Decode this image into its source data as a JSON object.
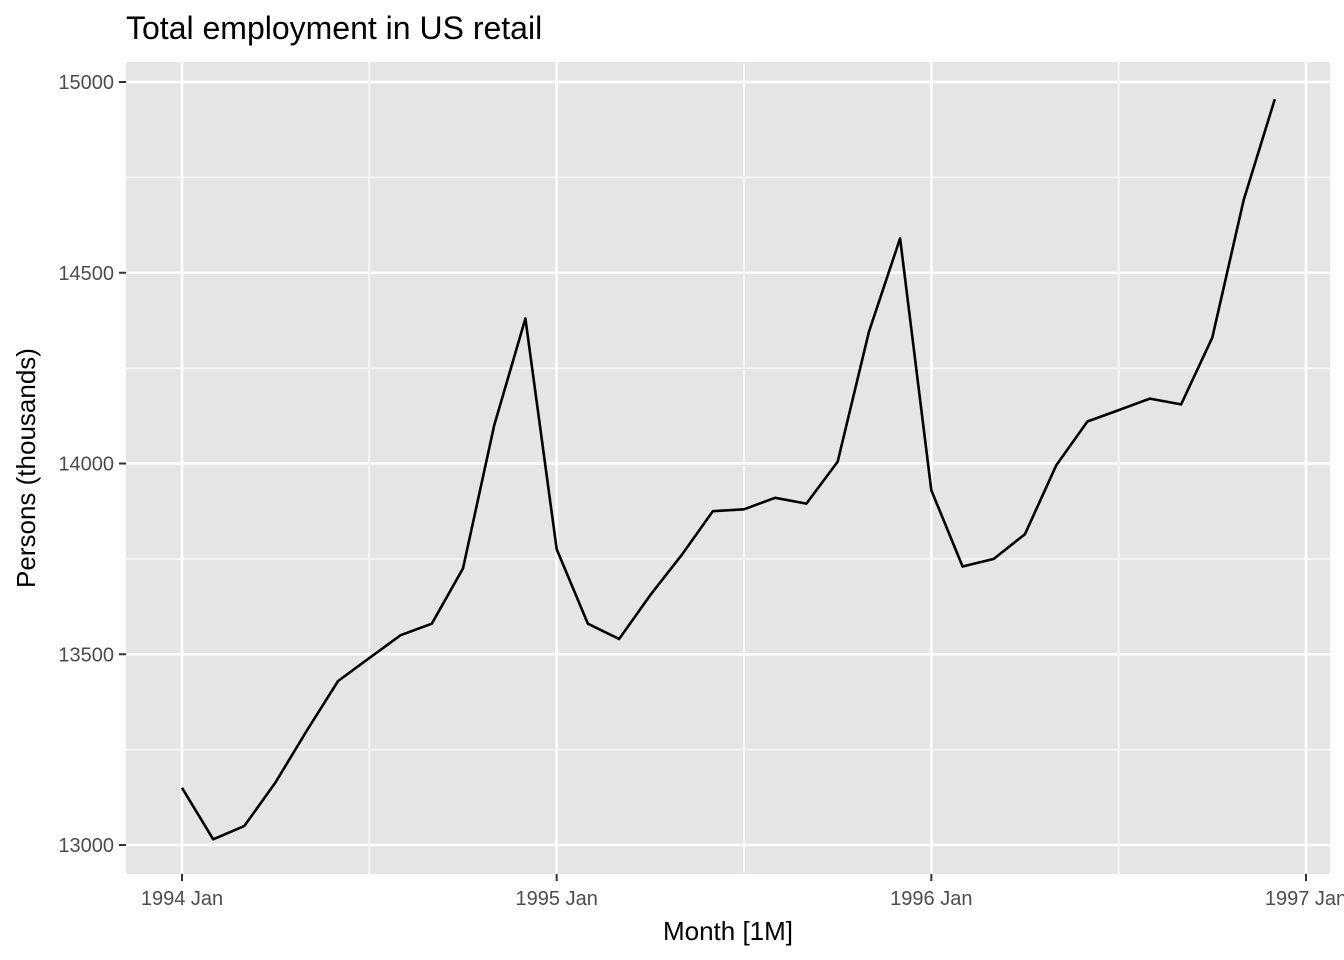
{
  "chart_data": {
    "type": "line",
    "title": "Total employment in US retail",
    "xlabel": "Month [1M]",
    "ylabel": "Persons (thousands)",
    "x": [
      "1994 Jan",
      "1994 Feb",
      "1994 Mar",
      "1994 Apr",
      "1994 May",
      "1994 Jun",
      "1994 Jul",
      "1994 Aug",
      "1994 Sep",
      "1994 Oct",
      "1994 Nov",
      "1994 Dec",
      "1995 Jan",
      "1995 Feb",
      "1995 Mar",
      "1995 Apr",
      "1995 May",
      "1995 Jun",
      "1995 Jul",
      "1995 Aug",
      "1995 Sep",
      "1995 Oct",
      "1995 Nov",
      "1995 Dec",
      "1996 Jan",
      "1996 Feb",
      "1996 Mar",
      "1996 Apr",
      "1996 May",
      "1996 Jun",
      "1996 Jul",
      "1996 Aug",
      "1996 Sep",
      "1996 Oct",
      "1996 Nov",
      "1996 Dec"
    ],
    "series": [
      {
        "values": [
          13150,
          13015,
          13050,
          13165,
          13300,
          13430,
          13490,
          13550,
          13580,
          13725,
          14100,
          14380,
          13775,
          13580,
          13540,
          13655,
          13760,
          13875,
          13880,
          13910,
          13895,
          14005,
          14345,
          14590,
          13930,
          13730,
          13750,
          13815,
          13995,
          14110,
          14140,
          14170,
          14155,
          14330,
          14690,
          14955
        ],
        "color": "#000000"
      }
    ],
    "x_ticks": [
      "1994 Jan",
      "1995 Jan",
      "1996 Jan",
      "1997 Jan"
    ],
    "y_ticks": [
      13000,
      13500,
      14000,
      14500,
      15000
    ],
    "xlim": [
      "1994 Jan",
      "1997 Jan"
    ],
    "ylim": [
      12925,
      15055
    ],
    "grid": true,
    "legend": "none",
    "panel_background": "#e5e5e5"
  }
}
